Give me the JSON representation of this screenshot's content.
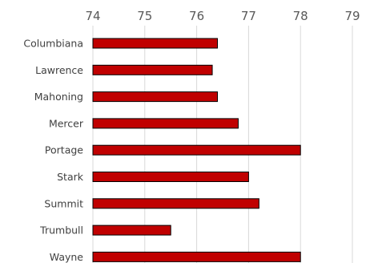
{
  "chart_data": {
    "type": "bar",
    "orientation": "horizontal",
    "title": "",
    "xlabel": "",
    "ylabel": "",
    "categories": [
      "Columbiana",
      "Lawrence",
      "Mahoning",
      "Mercer",
      "Portage",
      "Stark",
      "Summit",
      "Trumbull",
      "Wayne"
    ],
    "values": [
      76.4,
      76.3,
      76.4,
      76.8,
      78.0,
      77.0,
      77.2,
      75.5,
      78.0
    ],
    "xlim": [
      74,
      79
    ],
    "ticks": [
      "74",
      "75",
      "76",
      "77",
      "78",
      "79"
    ],
    "grid": true,
    "tick_position": "top",
    "bar_color": "#c00000",
    "bar_edge_color": "#000000",
    "grid_color": "#d9d9d9"
  }
}
